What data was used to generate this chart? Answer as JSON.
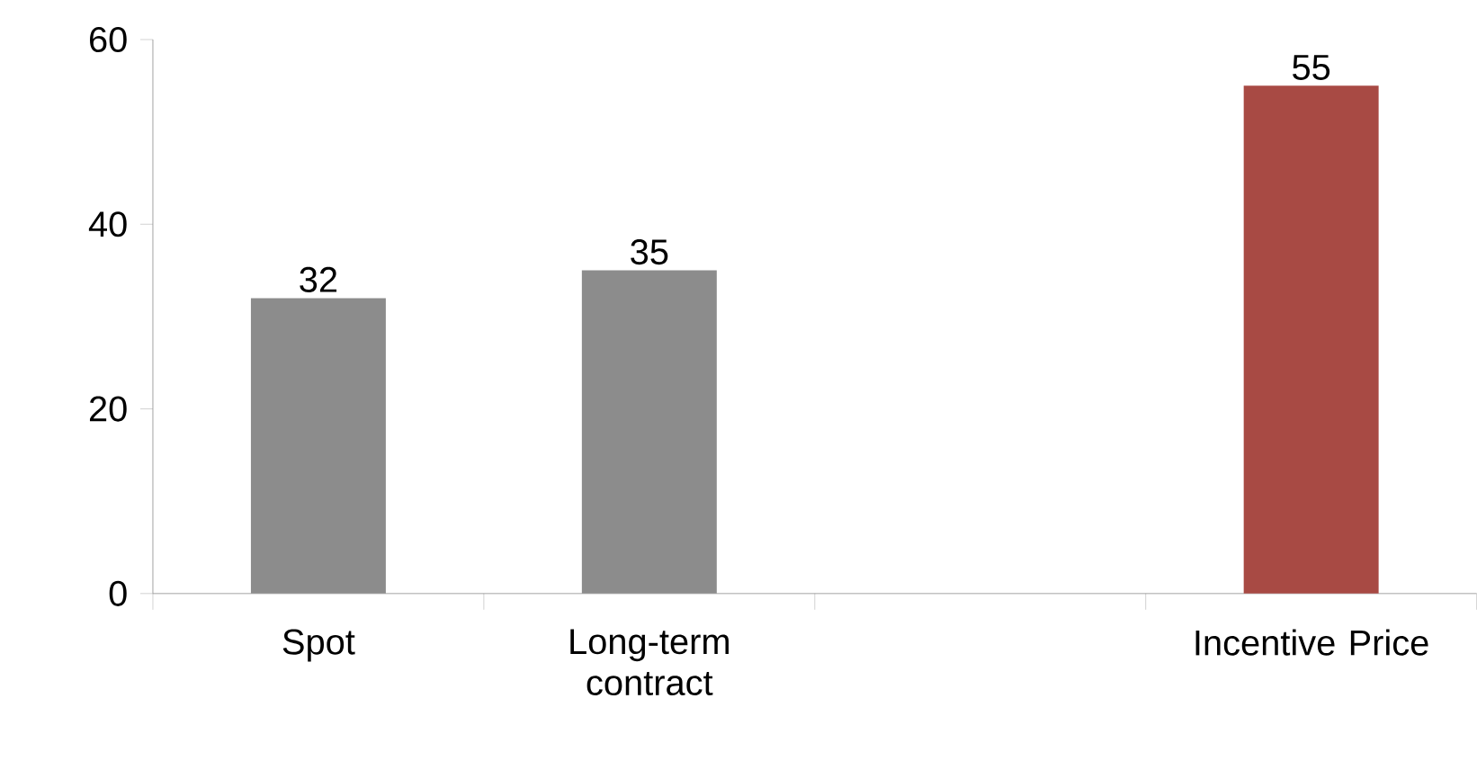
{
  "chart_data": {
    "type": "bar",
    "categories": [
      "Spot",
      "Long-term contract",
      null,
      "Incentive Price"
    ],
    "values": [
      32,
      35,
      null,
      55
    ],
    "colors": [
      "#8c8c8c",
      "#8c8c8c",
      null,
      "#a84a44"
    ],
    "ylim": [
      0,
      60
    ],
    "yticks": [
      0,
      20,
      40,
      60
    ],
    "data_labels": true,
    "grid": false
  }
}
